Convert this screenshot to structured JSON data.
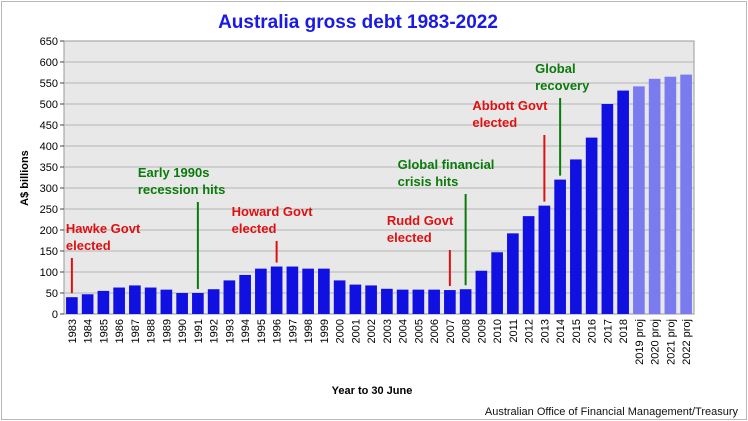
{
  "chart_data": {
    "type": "bar",
    "title": "Australia gross debt 1983-2022",
    "xlabel": "Year to 30 June",
    "ylabel": "A$ billions",
    "ylim": [
      0,
      650
    ],
    "yticks": [
      0,
      50,
      100,
      150,
      200,
      250,
      300,
      350,
      400,
      450,
      500,
      550,
      600,
      650
    ],
    "grid": true,
    "source": "Australian Office of Financial Management/Treasury",
    "categories": [
      "1983",
      "1984",
      "1985",
      "1986",
      "1987",
      "1988",
      "1989",
      "1990",
      "1991",
      "1992",
      "1993",
      "1994",
      "1995",
      "1996",
      "1997",
      "1998",
      "1999",
      "2000",
      "2001",
      "2002",
      "2003",
      "2004",
      "2005",
      "2006",
      "2007",
      "2008",
      "2009",
      "2010",
      "2011",
      "2012",
      "2013",
      "2014",
      "2015",
      "2016",
      "2017",
      "2018",
      "2019 proj",
      "2020 proj",
      "2021 proj",
      "2022 proj"
    ],
    "values": [
      40,
      47,
      55,
      63,
      68,
      63,
      58,
      50,
      50,
      59,
      80,
      93,
      108,
      113,
      113,
      108,
      108,
      80,
      70,
      68,
      60,
      58,
      58,
      58,
      57,
      59,
      103,
      147,
      192,
      233,
      258,
      320,
      368,
      420,
      500,
      532,
      542,
      560,
      565,
      570
    ],
    "colors": {
      "actual": "#1010e0",
      "projected": "#7b7bf0",
      "plot_background": "#e8e8e8",
      "grid": "#b5b5b5",
      "red": "#e01010",
      "green": "#0a7a0a"
    },
    "annotations": [
      {
        "lines": [
          "Hawke Govt",
          "elected"
        ],
        "year": "1983",
        "color": "red"
      },
      {
        "lines": [
          "Early 1990s",
          "recession hits"
        ],
        "year": "1991",
        "color": "green"
      },
      {
        "lines": [
          "Howard Govt",
          "elected"
        ],
        "year": "1996",
        "color": "red"
      },
      {
        "lines": [
          "Rudd Govt",
          "elected"
        ],
        "year": "2007",
        "color": "red"
      },
      {
        "lines": [
          "Global financial",
          "crisis hits"
        ],
        "year": "2008",
        "color": "green"
      },
      {
        "lines": [
          "Abbott Govt",
          "elected"
        ],
        "year": "2013",
        "color": "red"
      },
      {
        "lines": [
          "Global",
          "recovery"
        ],
        "year": "2014",
        "color": "green"
      }
    ]
  }
}
